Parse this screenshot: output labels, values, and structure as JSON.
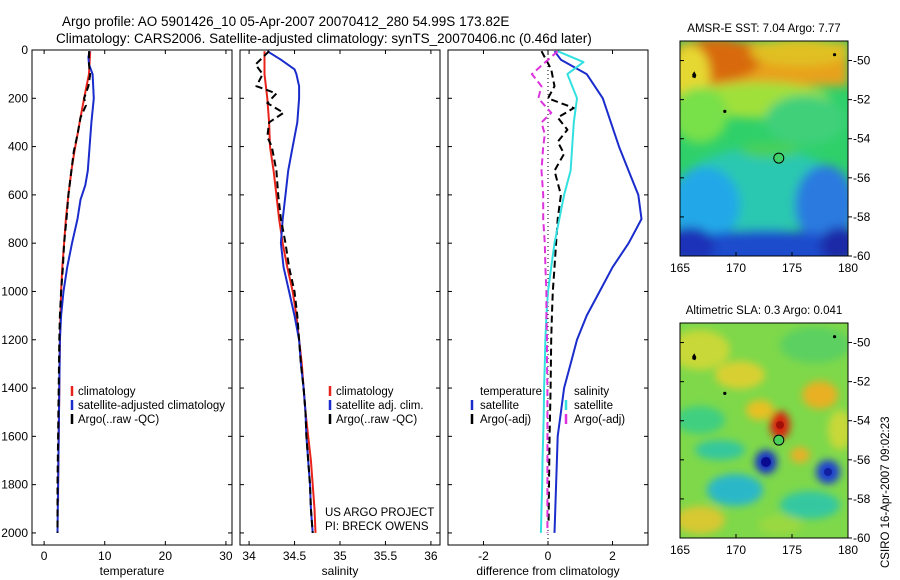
{
  "title": {
    "line1": "Argo profile: AO 5901426_10 05-Apr-2007 20070412_280 54.99S 173.82E",
    "line2": "Climatology: CARS2006. Satellite-adjusted climatology: synTS_20070406.nc (0.46d later)"
  },
  "footer": {
    "project": "US ARGO PROJECT",
    "pi": "PI: BRECK OWENS",
    "stamp": "CSIRO 16-Apr-2007 09:02:23"
  },
  "colors": {
    "climatology": "#e8231a",
    "satellite": "#1a2ccc",
    "argo": "#000000",
    "sal_satellite": "#33e0e0",
    "sal_argo": "#dd33dd"
  },
  "chart_data": [
    {
      "type": "line",
      "xlabel": "temperature",
      "ylabel": "",
      "xlim": [
        -2,
        31
      ],
      "ylim": [
        2050,
        0
      ],
      "xticks": [
        0,
        10,
        20,
        30
      ],
      "yticks": [
        0,
        200,
        400,
        600,
        800,
        1000,
        1200,
        1400,
        1600,
        1800,
        2000
      ],
      "legend": [
        "climatology",
        "satellite-adjusted climatology",
        "Argo(..raw -QC)"
      ],
      "legend_placement": "lower-right",
      "series": [
        {
          "name": "climatology",
          "style": "solid",
          "color": "climatology",
          "points": [
            [
              7.6,
              5
            ],
            [
              7.5,
              50
            ],
            [
              7.4,
              100
            ],
            [
              7.0,
              150
            ],
            [
              6.6,
              200
            ],
            [
              6.0,
              280
            ],
            [
              5.5,
              350
            ],
            [
              5.0,
              420
            ],
            [
              4.5,
              500
            ],
            [
              4.0,
              600
            ],
            [
              3.6,
              700
            ],
            [
              3.3,
              800
            ],
            [
              3.0,
              900
            ],
            [
              2.8,
              1000
            ],
            [
              2.7,
              1100
            ],
            [
              2.6,
              1200
            ],
            [
              2.5,
              1400
            ],
            [
              2.4,
              1600
            ],
            [
              2.3,
              1800
            ],
            [
              2.3,
              1870
            ]
          ]
        },
        {
          "name": "satellite-adjusted climatology",
          "style": "solid",
          "color": "satellite",
          "points": [
            [
              7.5,
              5
            ],
            [
              7.3,
              30
            ],
            [
              7.4,
              60
            ],
            [
              8.0,
              100
            ],
            [
              8.2,
              200
            ],
            [
              7.8,
              300
            ],
            [
              7.5,
              400
            ],
            [
              7.2,
              500
            ],
            [
              6.8,
              560
            ],
            [
              6.0,
              620
            ],
            [
              5.5,
              700
            ],
            [
              4.6,
              800
            ],
            [
              3.8,
              900
            ],
            [
              3.2,
              1000
            ],
            [
              2.8,
              1100
            ],
            [
              2.6,
              1200
            ],
            [
              2.5,
              1400
            ],
            [
              2.4,
              1600
            ],
            [
              2.3,
              1800
            ],
            [
              2.2,
              2000
            ]
          ]
        },
        {
          "name": "Argo(..raw -QC)",
          "style": "dashed",
          "color": "argo",
          "points": [
            [
              7.4,
              5
            ],
            [
              7.4,
              60
            ],
            [
              7.6,
              100
            ],
            [
              7.3,
              150
            ],
            [
              6.6,
              200
            ],
            [
              6.9,
              230
            ],
            [
              6.0,
              280
            ],
            [
              5.5,
              350
            ],
            [
              4.9,
              420
            ],
            [
              4.6,
              480
            ],
            [
              4.0,
              600
            ],
            [
              3.7,
              700
            ],
            [
              3.3,
              800
            ],
            [
              3.1,
              900
            ],
            [
              2.8,
              1000
            ],
            [
              2.6,
              1100
            ],
            [
              2.5,
              1200
            ],
            [
              2.4,
              1400
            ],
            [
              2.3,
              1600
            ],
            [
              2.2,
              1800
            ],
            [
              2.2,
              2000
            ]
          ]
        }
      ]
    },
    {
      "type": "line",
      "xlabel": "salinity",
      "ylabel": "",
      "xlim": [
        33.9,
        36.1
      ],
      "ylim": [
        2050,
        0
      ],
      "xticks": [
        34,
        34.5,
        35,
        35.5,
        36
      ],
      "yticks": [
        0,
        200,
        400,
        600,
        800,
        1000,
        1200,
        1400,
        1600,
        1800,
        2000
      ],
      "legend": [
        "climatology",
        "satellite adj. clim.",
        "Argo(..raw -QC)"
      ],
      "legend_placement": "lower-right",
      "series": [
        {
          "name": "climatology",
          "style": "solid",
          "color": "climatology",
          "points": [
            [
              34.17,
              5
            ],
            [
              34.17,
              100
            ],
            [
              34.2,
              200
            ],
            [
              34.22,
              300
            ],
            [
              34.23,
              400
            ],
            [
              34.27,
              500
            ],
            [
              34.3,
              600
            ],
            [
              34.33,
              700
            ],
            [
              34.37,
              800
            ],
            [
              34.42,
              900
            ],
            [
              34.48,
              1000
            ],
            [
              34.52,
              1100
            ],
            [
              34.55,
              1200
            ],
            [
              34.58,
              1300
            ],
            [
              34.6,
              1400
            ],
            [
              34.62,
              1500
            ],
            [
              34.65,
              1600
            ],
            [
              34.68,
              1700
            ],
            [
              34.7,
              1800
            ],
            [
              34.72,
              1900
            ],
            [
              34.73,
              2000
            ]
          ]
        },
        {
          "name": "satellite adj. clim.",
          "style": "solid",
          "color": "satellite",
          "points": [
            [
              34.2,
              5
            ],
            [
              34.35,
              40
            ],
            [
              34.5,
              80
            ],
            [
              34.52,
              100
            ],
            [
              34.55,
              150
            ],
            [
              34.55,
              200
            ],
            [
              34.53,
              300
            ],
            [
              34.48,
              400
            ],
            [
              34.43,
              500
            ],
            [
              34.4,
              600
            ],
            [
              34.37,
              700
            ],
            [
              34.35,
              800
            ],
            [
              34.38,
              900
            ],
            [
              34.44,
              1000
            ],
            [
              34.5,
              1100
            ],
            [
              34.55,
              1200
            ],
            [
              34.57,
              1300
            ],
            [
              34.6,
              1400
            ],
            [
              34.62,
              1500
            ],
            [
              34.63,
              1600
            ],
            [
              34.65,
              1700
            ],
            [
              34.67,
              1800
            ],
            [
              34.68,
              1900
            ],
            [
              34.7,
              2000
            ]
          ]
        },
        {
          "name": "Argo(..raw -QC)",
          "style": "dashed",
          "color": "argo",
          "points": [
            [
              34.22,
              5
            ],
            [
              34.07,
              60
            ],
            [
              34.15,
              100
            ],
            [
              34.08,
              150
            ],
            [
              34.3,
              180
            ],
            [
              34.2,
              220
            ],
            [
              34.38,
              260
            ],
            [
              34.22,
              300
            ],
            [
              34.2,
              360
            ],
            [
              34.25,
              400
            ],
            [
              34.3,
              500
            ],
            [
              34.32,
              600
            ],
            [
              34.35,
              700
            ],
            [
              34.4,
              800
            ],
            [
              34.44,
              900
            ],
            [
              34.5,
              1000
            ],
            [
              34.53,
              1100
            ],
            [
              34.55,
              1200
            ],
            [
              34.57,
              1300
            ],
            [
              34.6,
              1400
            ],
            [
              34.62,
              1500
            ],
            [
              34.63,
              1600
            ],
            [
              34.65,
              1700
            ],
            [
              34.67,
              1800
            ],
            [
              34.68,
              1900
            ],
            [
              34.7,
              2000
            ]
          ]
        }
      ]
    },
    {
      "type": "line",
      "xlabel": "difference from climatology",
      "ylabel": "",
      "xlim": [
        -3.1,
        3.1
      ],
      "ylim": [
        2050,
        0
      ],
      "xticks": [
        -2,
        0,
        2
      ],
      "yticks": [
        0,
        200,
        400,
        600,
        800,
        1000,
        1200,
        1400,
        1600,
        1800,
        2000
      ],
      "legend_headers": [
        "temperature",
        "salinity"
      ],
      "legend": [
        "satellite",
        "Argo(-adj)",
        "satellite",
        "Argo(-adj)"
      ],
      "legend_placement": "lower-center",
      "series": [
        {
          "name": "satellite",
          "group": "temperature",
          "style": "solid",
          "color": "satellite",
          "points": [
            [
              0.2,
              5
            ],
            [
              0.4,
              40
            ],
            [
              1.2,
              100
            ],
            [
              1.7,
              200
            ],
            [
              2.2,
              400
            ],
            [
              2.5,
              500
            ],
            [
              2.8,
              600
            ],
            [
              2.9,
              700
            ],
            [
              2.5,
              800
            ],
            [
              2.0,
              900
            ],
            [
              1.6,
              1000
            ],
            [
              1.2,
              1100
            ],
            [
              0.9,
              1200
            ],
            [
              0.7,
              1300
            ],
            [
              0.5,
              1400
            ],
            [
              0.4,
              1500
            ],
            [
              0.3,
              1600
            ],
            [
              0.25,
              1800
            ],
            [
              0.2,
              2000
            ]
          ]
        },
        {
          "name": "Argo(-adj)",
          "group": "temperature",
          "style": "dashed",
          "color": "argo",
          "points": [
            [
              -0.2,
              5
            ],
            [
              0.1,
              80
            ],
            [
              0.2,
              150
            ],
            [
              0.0,
              200
            ],
            [
              0.8,
              240
            ],
            [
              0.3,
              280
            ],
            [
              0.6,
              330
            ],
            [
              0.3,
              380
            ],
            [
              0.5,
              430
            ],
            [
              0.2,
              500
            ],
            [
              0.4,
              600
            ],
            [
              0.3,
              700
            ],
            [
              0.25,
              800
            ],
            [
              0.2,
              900
            ],
            [
              0.15,
              1000
            ],
            [
              0.12,
              1100
            ],
            [
              0.1,
              1200
            ],
            [
              0.08,
              1400
            ],
            [
              0.05,
              1600
            ],
            [
              0.03,
              1800
            ],
            [
              0.02,
              1950
            ]
          ]
        },
        {
          "name": "satellite",
          "group": "salinity",
          "style": "solid",
          "color": "sal_satellite",
          "points": [
            [
              0.3,
              5
            ],
            [
              1.1,
              50
            ],
            [
              0.6,
              100
            ],
            [
              0.9,
              200
            ],
            [
              0.8,
              300
            ],
            [
              0.75,
              400
            ],
            [
              0.7,
              500
            ],
            [
              0.5,
              600
            ],
            [
              0.35,
              700
            ],
            [
              0.2,
              800
            ],
            [
              0.1,
              900
            ],
            [
              0.0,
              1000
            ],
            [
              -0.05,
              1100
            ],
            [
              -0.08,
              1200
            ],
            [
              -0.1,
              1300
            ],
            [
              -0.12,
              1400
            ],
            [
              -0.13,
              1500
            ],
            [
              -0.15,
              1600
            ],
            [
              -0.17,
              1700
            ],
            [
              -0.18,
              1800
            ],
            [
              -0.2,
              1900
            ],
            [
              -0.22,
              2000
            ]
          ]
        },
        {
          "name": "Argo(-adj)",
          "group": "salinity",
          "style": "dashed",
          "color": "sal_argo",
          "points": [
            [
              0.3,
              5
            ],
            [
              -0.5,
              100
            ],
            [
              -0.2,
              150
            ],
            [
              -0.3,
              200
            ],
            [
              0.1,
              260
            ],
            [
              -0.2,
              300
            ],
            [
              -0.1,
              350
            ],
            [
              -0.15,
              400
            ],
            [
              -0.2,
              500
            ],
            [
              -0.15,
              600
            ],
            [
              -0.15,
              700
            ],
            [
              -0.1,
              800
            ],
            [
              -0.08,
              900
            ],
            [
              -0.05,
              1000
            ],
            [
              -0.05,
              1100
            ],
            [
              -0.03,
              1200
            ],
            [
              -0.03,
              1300
            ],
            [
              -0.02,
              1400
            ],
            [
              -0.02,
              1500
            ],
            [
              -0.02,
              1600
            ],
            [
              -0.02,
              1800
            ],
            [
              -0.02,
              2000
            ]
          ]
        }
      ]
    },
    {
      "type": "heatmap",
      "title": "AMSR-E SST: 7.04 Argo: 7.77",
      "xlim": [
        165,
        180
      ],
      "ylim": [
        -60,
        -49
      ],
      "xticks": [
        165,
        170,
        175,
        180
      ],
      "yticks": [
        -50,
        -52,
        -54,
        -56,
        -58,
        -60
      ],
      "colormap": "jet",
      "profile_location": {
        "lon": 173.82,
        "lat": -54.99
      },
      "markers": [
        {
          "lon": 169,
          "lat": -52.6
        },
        {
          "lon": 178.8,
          "lat": -49.7
        }
      ]
    },
    {
      "type": "heatmap",
      "title": "Altimetric SLA: 0.3 Argo: 0.041",
      "xlim": [
        165,
        180
      ],
      "ylim": [
        -60,
        -49
      ],
      "xticks": [
        165,
        170,
        175,
        180
      ],
      "yticks": [
        -50,
        -52,
        -54,
        -56,
        -58,
        -60
      ],
      "colormap": "jet",
      "profile_location": {
        "lon": 173.82,
        "lat": -54.99
      },
      "markers": [
        {
          "lon": 169,
          "lat": -52.6
        },
        {
          "lon": 178.8,
          "lat": -49.7
        }
      ]
    }
  ]
}
